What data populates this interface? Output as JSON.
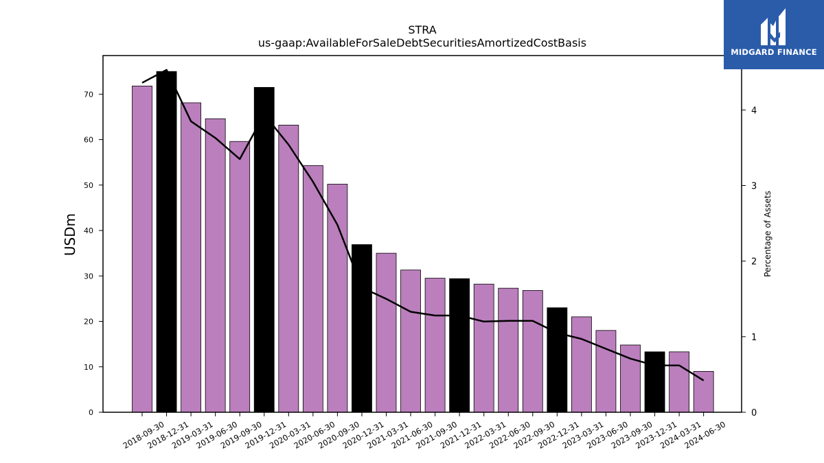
{
  "chart_data": {
    "type": "bar",
    "title": "STRA",
    "subtitle": "us-gaap:AvailableForSaleDebtSecuritiesAmortizedCostBasis",
    "ylabel": "USDm",
    "y2label": "Percentage of Assets",
    "ylim": [
      0,
      78.5
    ],
    "y2lim": [
      0,
      4.72
    ],
    "yticks": [
      0,
      10,
      20,
      30,
      40,
      50,
      60,
      70
    ],
    "y2ticks": [
      0,
      1,
      2,
      3,
      4
    ],
    "grid": false,
    "categories": [
      "2018-09-30",
      "2018-12-31",
      "2019-03-31",
      "2019-06-30",
      "2019-09-30",
      "2019-12-31",
      "2020-03-31",
      "2020-06-30",
      "2020-09-30",
      "2020-12-31",
      "2021-03-31",
      "2021-06-30",
      "2021-09-30",
      "2021-12-31",
      "2022-03-31",
      "2022-06-30",
      "2022-09-30",
      "2022-12-31",
      "2023-03-31",
      "2023-06-30",
      "2023-09-30",
      "2023-12-31",
      "2024-03-31",
      "2024-06-30"
    ],
    "series": [
      {
        "type": "bar",
        "values": [
          71.8,
          75.0,
          68.1,
          64.6,
          59.6,
          71.5,
          63.2,
          54.3,
          50.2,
          36.9,
          35.0,
          31.3,
          29.5,
          29.4,
          28.2,
          27.3,
          26.8,
          23.0,
          21.0,
          18.0,
          14.8,
          13.3,
          13.3,
          9.0
        ]
      },
      {
        "type": "line",
        "axis": "secondary",
        "values": [
          4.36,
          4.53,
          3.85,
          3.63,
          3.35,
          3.94,
          3.54,
          3.05,
          2.48,
          1.65,
          1.5,
          1.33,
          1.28,
          1.28,
          1.2,
          1.21,
          1.21,
          1.05,
          0.97,
          0.84,
          0.71,
          0.62,
          0.62,
          0.42
        ]
      }
    ],
    "bar_colors": {
      "default": "#bb7fbd",
      "year_end": "#000000"
    },
    "line_color": "#000000"
  },
  "logo": {
    "text": "MIDGARD FINANCE",
    "background": "#2a5caa"
  }
}
